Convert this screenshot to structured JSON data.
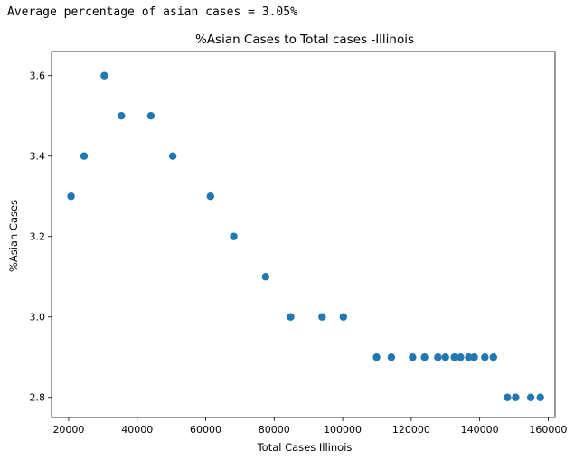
{
  "output": {
    "text": "Average percentage of asian cases = 3.05%"
  },
  "chart_data": {
    "type": "scatter",
    "title": "%Asian Cases to Total cases -Illinois",
    "xlabel": "Total Cases Illinois",
    "ylabel": "%Asian Cases",
    "xlim": [
      15000,
      162000
    ],
    "ylim": [
      2.75,
      3.66
    ],
    "xticks": [
      20000,
      40000,
      60000,
      80000,
      100000,
      120000,
      140000,
      160000
    ],
    "xtick_labels": [
      "20000",
      "40000",
      "60000",
      "80000",
      "100000",
      "120000",
      "140000",
      "160000"
    ],
    "yticks": [
      2.8,
      3.0,
      3.2,
      3.4,
      3.6
    ],
    "ytick_labels": [
      "2.8",
      "3.0",
      "3.2",
      "3.4",
      "3.6"
    ],
    "grid": false,
    "color": "#1f77b4",
    "x": [
      20700,
      24500,
      30400,
      35400,
      44000,
      50400,
      61400,
      68200,
      77500,
      84800,
      94000,
      100200,
      109900,
      114200,
      120400,
      123900,
      127800,
      130000,
      132600,
      134400,
      136800,
      138400,
      141500,
      144000,
      148100,
      150500,
      154900,
      157700
    ],
    "y": [
      3.3,
      3.4,
      3.6,
      3.5,
      3.5,
      3.4,
      3.3,
      3.2,
      3.1,
      3.0,
      3.0,
      3.0,
      2.9,
      2.9,
      2.9,
      2.9,
      2.9,
      2.9,
      2.9,
      2.9,
      2.9,
      2.9,
      2.9,
      2.9,
      2.8,
      2.8,
      2.8,
      2.8
    ]
  }
}
